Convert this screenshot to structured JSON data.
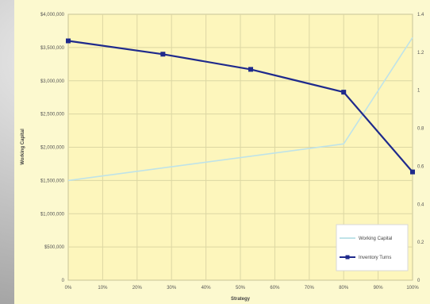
{
  "chart_data": {
    "type": "line",
    "title": "",
    "xlabel": "Strategy",
    "ylabel_left": "Working Capital",
    "ylabel_right": "",
    "categories": [
      "0%",
      "10%",
      "20%",
      "30%",
      "40%",
      "50%",
      "60%",
      "70%",
      "80%",
      "90%",
      "100%"
    ],
    "ylim_left": [
      0,
      4000000
    ],
    "ylim_right": [
      0,
      1.4
    ],
    "y_ticks_left": [
      "$4,000,000",
      "$3,500,000",
      "$3,000,000",
      "$2,500,000",
      "$2,000,000",
      "$1,500,000",
      "$1,000,000",
      "$500,000",
      "0"
    ],
    "y_ticks_right": [
      "1.4",
      "1.2",
      "1",
      "0.8",
      "0.6",
      "0.4",
      "0.2",
      "0"
    ],
    "grid": true,
    "legend_position": "bottom-right",
    "series": [
      {
        "name": "Working Capital",
        "axis": "left",
        "color": "#bfe3e8",
        "x": [
          0,
          80,
          100
        ],
        "values": [
          1500000,
          2050000,
          3650000
        ]
      },
      {
        "name": "Inventory Turns",
        "axis": "right",
        "color": "#1f2a8c",
        "x": [
          0,
          27.5,
          53,
          80,
          100
        ],
        "values": [
          1.26,
          1.19,
          1.11,
          0.99,
          0.57
        ]
      }
    ]
  }
}
